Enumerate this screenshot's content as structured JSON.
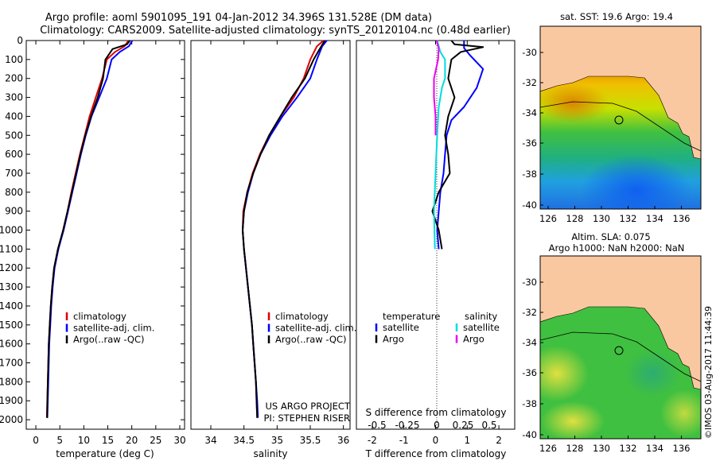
{
  "header": {
    "line1": "Argo profile: aoml 5901095_191 04-Jan-2012 34.396S 131.528E (DM data)",
    "line2": "Climatology: CARS2009. Satellite-adjusted climatology: synTS_20120104.nc (0.48d earlier)"
  },
  "colors": {
    "climatology": "#dd0000",
    "satellite": "#0000ff",
    "argo": "#000000",
    "sal_sat": "#00dddd",
    "sal_argo": "#ee00ee",
    "land": "#fac8a0"
  },
  "chart_data": [
    {
      "type": "line",
      "xlabel": "temperature (deg C)",
      "xlim": [
        -2,
        31
      ],
      "ylim": [
        0,
        2050
      ],
      "xticks": [
        "0",
        "5",
        "10",
        "15",
        "20",
        "25",
        "30"
      ],
      "yticks": [
        "0",
        "100",
        "200",
        "300",
        "400",
        "500",
        "600",
        "700",
        "800",
        "900",
        "1000",
        "1100",
        "1200",
        "1300",
        "1400",
        "1500",
        "1600",
        "1700",
        "1800",
        "1900",
        "2000"
      ],
      "legend": [
        "climatology",
        "satellite-adj. clim.",
        "Argo(..raw -QC)"
      ],
      "series": [
        {
          "name": "climatology",
          "points": [
            [
              19.3,
              0
            ],
            [
              18.5,
              30
            ],
            [
              16.5,
              60
            ],
            [
              14.8,
              100
            ],
            [
              13.8,
              200
            ],
            [
              12.5,
              300
            ],
            [
              11.2,
              400
            ],
            [
              10.2,
              500
            ],
            [
              9.2,
              600
            ],
            [
              8.3,
              700
            ],
            [
              7.4,
              800
            ],
            [
              6.6,
              900
            ],
            [
              5.7,
              1000
            ],
            [
              4.6,
              1100
            ],
            [
              3.8,
              1200
            ],
            [
              3.4,
              1300
            ],
            [
              3.1,
              1400
            ],
            [
              2.9,
              1500
            ],
            [
              2.7,
              1600
            ],
            [
              2.6,
              1700
            ],
            [
              2.5,
              1800
            ],
            [
              2.4,
              1900
            ],
            [
              2.3,
              1990
            ]
          ]
        },
        {
          "name": "satellite-adj. clim.",
          "points": [
            [
              20.1,
              0
            ],
            [
              19.4,
              30
            ],
            [
              17.5,
              60
            ],
            [
              15.8,
              100
            ],
            [
              14.8,
              200
            ],
            [
              13.2,
              300
            ],
            [
              11.6,
              400
            ],
            [
              10.4,
              500
            ],
            [
              9.4,
              600
            ],
            [
              8.5,
              700
            ],
            [
              7.6,
              800
            ],
            [
              6.7,
              900
            ],
            [
              5.8,
              1000
            ],
            [
              4.7,
              1100
            ],
            [
              3.9,
              1200
            ],
            [
              3.5,
              1300
            ],
            [
              3.2,
              1400
            ],
            [
              3.0,
              1500
            ],
            [
              2.8,
              1600
            ],
            [
              2.7,
              1700
            ],
            [
              2.6,
              1800
            ],
            [
              2.5,
              1900
            ],
            [
              2.4,
              1990
            ]
          ]
        },
        {
          "name": "Argo(..raw -QC)",
          "points": [
            [
              19.6,
              0
            ],
            [
              19.0,
              20
            ],
            [
              16.0,
              45
            ],
            [
              14.5,
              100
            ],
            [
              14.0,
              200
            ],
            [
              12.9,
              300
            ],
            [
              11.5,
              400
            ],
            [
              10.3,
              500
            ],
            [
              9.3,
              600
            ],
            [
              8.4,
              700
            ],
            [
              7.5,
              800
            ],
            [
              6.6,
              900
            ],
            [
              5.7,
              1000
            ],
            [
              4.6,
              1100
            ],
            [
              3.8,
              1200
            ],
            [
              3.4,
              1300
            ],
            [
              3.1,
              1400
            ],
            [
              2.9,
              1500
            ],
            [
              2.7,
              1600
            ],
            [
              2.6,
              1700
            ],
            [
              2.5,
              1800
            ],
            [
              2.4,
              1900
            ],
            [
              2.35,
              1990
            ]
          ]
        }
      ]
    },
    {
      "type": "line",
      "xlabel": "salinity",
      "xlim": [
        33.7,
        36.1
      ],
      "ylim": [
        0,
        2050
      ],
      "xticks": [
        "34",
        "34.5",
        "35",
        "35.5",
        "36"
      ],
      "legend": [
        "climatology",
        "satellite-adj. clim.",
        "Argo(..raw -QC)"
      ],
      "annotation": [
        "US ARGO PROJECT",
        "PI: STEPHEN RISER"
      ],
      "series": [
        {
          "name": "climatology",
          "points": [
            [
              35.7,
              0
            ],
            [
              35.6,
              30
            ],
            [
              35.5,
              100
            ],
            [
              35.4,
              200
            ],
            [
              35.25,
              300
            ],
            [
              35.05,
              400
            ],
            [
              34.88,
              500
            ],
            [
              34.74,
              600
            ],
            [
              34.63,
              700
            ],
            [
              34.55,
              800
            ],
            [
              34.49,
              900
            ],
            [
              34.48,
              1000
            ],
            [
              34.5,
              1100
            ],
            [
              34.53,
              1200
            ],
            [
              34.56,
              1300
            ],
            [
              34.59,
              1400
            ],
            [
              34.62,
              1500
            ],
            [
              34.64,
              1600
            ],
            [
              34.66,
              1700
            ],
            [
              34.68,
              1800
            ],
            [
              34.69,
              1900
            ],
            [
              34.7,
              1990
            ]
          ]
        },
        {
          "name": "satellite-adj. clim.",
          "points": [
            [
              35.75,
              0
            ],
            [
              35.68,
              30
            ],
            [
              35.6,
              100
            ],
            [
              35.5,
              200
            ],
            [
              35.3,
              300
            ],
            [
              35.08,
              400
            ],
            [
              34.9,
              500
            ],
            [
              34.75,
              600
            ],
            [
              34.64,
              700
            ],
            [
              34.56,
              800
            ],
            [
              34.5,
              900
            ],
            [
              34.48,
              1000
            ],
            [
              34.5,
              1100
            ],
            [
              34.53,
              1200
            ],
            [
              34.56,
              1300
            ],
            [
              34.59,
              1400
            ],
            [
              34.62,
              1500
            ],
            [
              34.64,
              1600
            ],
            [
              34.66,
              1700
            ],
            [
              34.68,
              1800
            ],
            [
              34.7,
              1900
            ],
            [
              34.71,
              1990
            ]
          ]
        },
        {
          "name": "Argo(..raw -QC)",
          "points": [
            [
              35.72,
              0
            ],
            [
              35.65,
              40
            ],
            [
              35.55,
              100
            ],
            [
              35.42,
              200
            ],
            [
              35.22,
              300
            ],
            [
              35.05,
              400
            ],
            [
              34.88,
              500
            ],
            [
              34.75,
              600
            ],
            [
              34.64,
              700
            ],
            [
              34.55,
              800
            ],
            [
              34.5,
              900
            ],
            [
              34.48,
              1000
            ],
            [
              34.5,
              1100
            ],
            [
              34.53,
              1200
            ],
            [
              34.56,
              1300
            ],
            [
              34.59,
              1400
            ],
            [
              34.62,
              1500
            ],
            [
              34.64,
              1600
            ],
            [
              34.66,
              1700
            ],
            [
              34.68,
              1800
            ],
            [
              34.69,
              1900
            ],
            [
              34.7,
              1990
            ]
          ]
        }
      ]
    },
    {
      "type": "line",
      "xlabel": "T difference from climatology",
      "xlim": [
        -2.5,
        2.5
      ],
      "ylim": [
        0,
        2050
      ],
      "xticks": [
        "-2",
        "-1",
        "0",
        "1",
        "2"
      ],
      "top_xlabel": "S difference from climatology",
      "top_xticks": [
        "-0.5",
        "-0.25",
        "0",
        "0.25",
        "0.5"
      ],
      "legend_temperature_title": "temperature",
      "legend_salinity_title": "salinity",
      "legend_temperature": [
        "satellite",
        "Argo"
      ],
      "legend_salinity": [
        "satellite",
        "Argo"
      ],
      "series": [
        {
          "name": "satellite",
          "points": [
            [
              0.9,
              0
            ],
            [
              0.9,
              40
            ],
            [
              1.1,
              80
            ],
            [
              1.5,
              150
            ],
            [
              1.3,
              250
            ],
            [
              0.9,
              350
            ],
            [
              0.5,
              420
            ],
            [
              0.35,
              500
            ],
            [
              0.3,
              600
            ],
            [
              0.25,
              700
            ],
            [
              0.15,
              800
            ],
            [
              0.1,
              900
            ],
            [
              0.05,
              1000
            ],
            [
              0.1,
              1100
            ]
          ]
        },
        {
          "name": "Argo",
          "points": [
            [
              0.5,
              0
            ],
            [
              0.6,
              20
            ],
            [
              1.5,
              35
            ],
            [
              0.8,
              60
            ],
            [
              0.5,
              100
            ],
            [
              0.4,
              200
            ],
            [
              0.6,
              300
            ],
            [
              0.4,
              400
            ],
            [
              0.3,
              500
            ],
            [
              0.4,
              600
            ],
            [
              0.45,
              700
            ],
            [
              0.1,
              800
            ],
            [
              -0.1,
              900
            ],
            [
              0.1,
              1000
            ],
            [
              0.2,
              1100
            ]
          ]
        },
        {
          "name": "satellite",
          "points": [
            [
              0.05,
              0
            ],
            [
              0.15,
              60
            ],
            [
              0.3,
              100
            ],
            [
              0.3,
              200
            ],
            [
              0.2,
              250
            ],
            [
              0.1,
              350
            ],
            [
              0.05,
              500
            ],
            [
              0.0,
              700
            ],
            [
              -0.05,
              900
            ],
            [
              -0.02,
              1100
            ]
          ]
        },
        {
          "name": "Argo",
          "points": [
            [
              0.03,
              0
            ],
            [
              0.1,
              40
            ],
            [
              0.08,
              100
            ],
            [
              -0.05,
              200
            ],
            [
              -0.05,
              300
            ],
            [
              0.0,
              400
            ],
            [
              0.0,
              500
            ]
          ]
        }
      ]
    }
  ],
  "maps": {
    "top": {
      "title": "sat. SST: 19.6  Argo: 19.4",
      "yticks": [
        "-30",
        "-32",
        "-34",
        "-36",
        "-38",
        "-40"
      ],
      "xticks": [
        "126",
        "128",
        "130",
        "132",
        "134",
        "136"
      ]
    },
    "bottom": {
      "title1": "Altim. SLA: 0.075",
      "title2": "Argo h1000: NaN h2000: NaN",
      "yticks": [
        "-30",
        "-32",
        "-34",
        "-36",
        "-38",
        "-40"
      ],
      "xticks": [
        "126",
        "128",
        "130",
        "132",
        "134",
        "136"
      ]
    },
    "float_position": {
      "lon": 131.528,
      "lat": -34.396
    }
  },
  "footer": {
    "credit": "©IMOS 03-Aug-2017 11:44:39"
  }
}
